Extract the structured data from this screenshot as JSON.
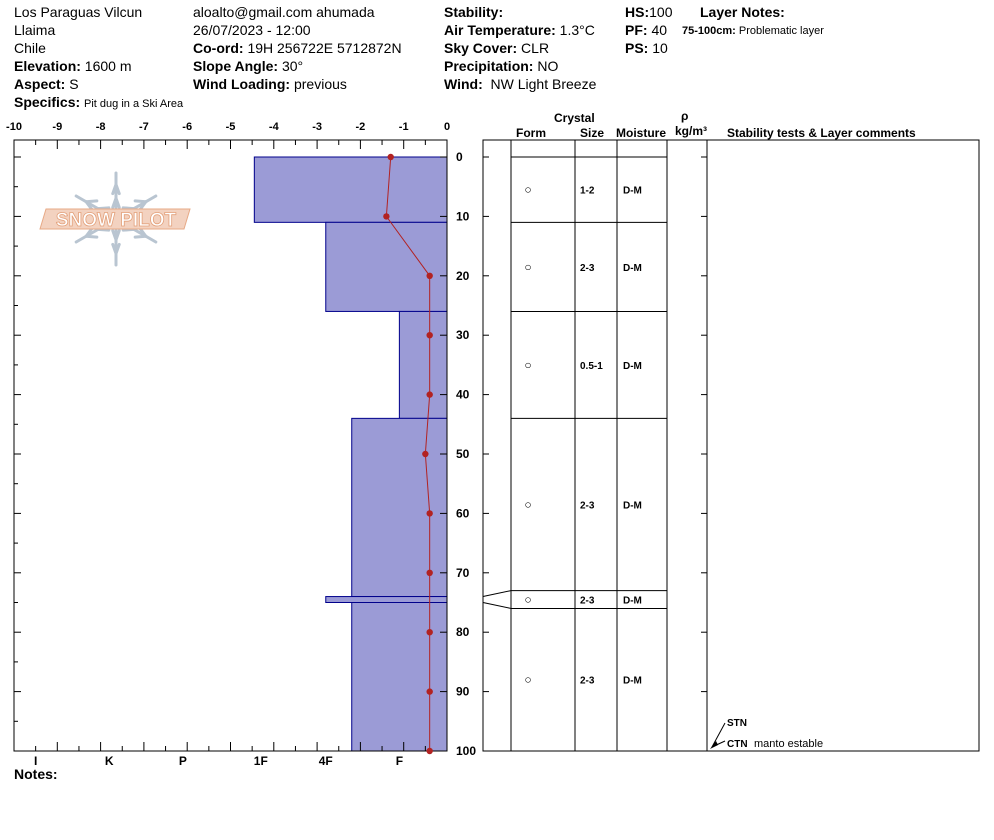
{
  "header": {
    "location": "Los Paraguas Vilcun",
    "region": "Llaima",
    "country": "Chile",
    "elevation_label": "Elevation:",
    "elevation": "1600 m",
    "aspect_label": "Aspect:",
    "aspect": "S",
    "specifics_label": "Specifics:",
    "specifics": "Pit dug in a Ski Area",
    "observer": "aloalto@gmail.com ahumada",
    "datetime": "26/07/2023 - 12:00",
    "coord_label": "Co-ord:",
    "coord": "19H 256722E 5712872N",
    "slope_label": "Slope Angle:",
    "slope": "30°",
    "wind_loading_label": "Wind Loading:",
    "wind_loading": "previous",
    "stability_label": "Stability:",
    "stability": "",
    "air_temp_label": "Air Temperature:",
    "air_temp": "1.3°C",
    "sky_label": "Sky Cover:",
    "sky": "CLR",
    "precip_label": "Precipitation:",
    "precip": "NO",
    "wind_label": "Wind:",
    "wind": "NW Light Breeze",
    "hs_label": "HS:",
    "hs": "100",
    "pf_label": "PF:",
    "pf": "40",
    "ps_label": "PS:",
    "ps": "10",
    "layer_notes_label": "Layer Notes:",
    "layer_note_range": "75-100cm:",
    "layer_note_text": "Problematic layer"
  },
  "columns": {
    "crystal": "Crystal",
    "form": "Form",
    "size": "Size",
    "moisture": "Moisture",
    "rho": "ρ",
    "density_unit": "kg/m³",
    "comments": "Stability tests & Layer comments"
  },
  "notes_label": "Notes:",
  "logo_text": "SNOW PILOT",
  "stability_tests": [
    {
      "name": "STN",
      "comment": ""
    },
    {
      "name": "CTN",
      "comment": "manto estable"
    }
  ],
  "chart_data": {
    "type": "snow-profile",
    "temperature_axis": {
      "ticks": [
        "-10",
        "-9",
        "-8",
        "-7",
        "-6",
        "-5",
        "-4",
        "-3",
        "-2",
        "-1",
        "0"
      ],
      "range": [
        -10,
        0
      ]
    },
    "depth_axis": {
      "ticks": [
        "0",
        "10",
        "20",
        "30",
        "40",
        "50",
        "60",
        "70",
        "80",
        "90",
        "100"
      ],
      "range": [
        0,
        100
      ]
    },
    "hardness_axis": {
      "ticks": [
        "I",
        "K",
        "P",
        "1F",
        "4F",
        "F"
      ],
      "positions": [
        -9.5,
        -7.8,
        -6.1,
        -4.3,
        -2.8,
        -1.1
      ]
    },
    "temperature_profile": [
      {
        "depth": 0,
        "temp": -1.3
      },
      {
        "depth": 10,
        "temp": -1.4
      },
      {
        "depth": 20,
        "temp": -0.4
      },
      {
        "depth": 30,
        "temp": -0.4
      },
      {
        "depth": 40,
        "temp": -0.4
      },
      {
        "depth": 50,
        "temp": -0.5
      },
      {
        "depth": 60,
        "temp": -0.4
      },
      {
        "depth": 70,
        "temp": -0.4
      },
      {
        "depth": 80,
        "temp": -0.4
      },
      {
        "depth": 90,
        "temp": -0.4
      },
      {
        "depth": 100,
        "temp": -0.4
      }
    ],
    "hardness_layers": [
      {
        "top": 0,
        "bottom": 11,
        "hardness_value": -4.45
      },
      {
        "top": 11,
        "bottom": 26,
        "hardness_value": -2.8
      },
      {
        "top": 26,
        "bottom": 44,
        "hardness_value": -1.1
      },
      {
        "top": 44,
        "bottom": 74,
        "hardness_value": -2.2
      },
      {
        "top": 74,
        "bottom": 75,
        "hardness_value": -2.8
      },
      {
        "top": 75,
        "bottom": 100,
        "hardness_value": -2.2
      }
    ],
    "layers": [
      {
        "top": 0,
        "bottom": 11,
        "form": "○",
        "size": "1-2",
        "moisture": "D-M"
      },
      {
        "top": 11,
        "bottom": 26,
        "form": "○",
        "size": "2-3",
        "moisture": "D-M"
      },
      {
        "top": 26,
        "bottom": 44,
        "form": "○",
        "size": "0.5-1",
        "moisture": "D-M"
      },
      {
        "top": 44,
        "bottom": 73,
        "form": "○",
        "size": "2-3",
        "moisture": "D-M"
      },
      {
        "top": 73,
        "bottom": 76,
        "form": "○",
        "size": "2-3",
        "moisture": "D-M"
      },
      {
        "top": 76,
        "bottom": 100,
        "form": "○",
        "size": "2-3",
        "moisture": "D-M"
      }
    ],
    "colors": {
      "hardness_fill": "#9b9bd6",
      "hardness_stroke": "#00008b",
      "temperature_line": "#b22222"
    }
  }
}
